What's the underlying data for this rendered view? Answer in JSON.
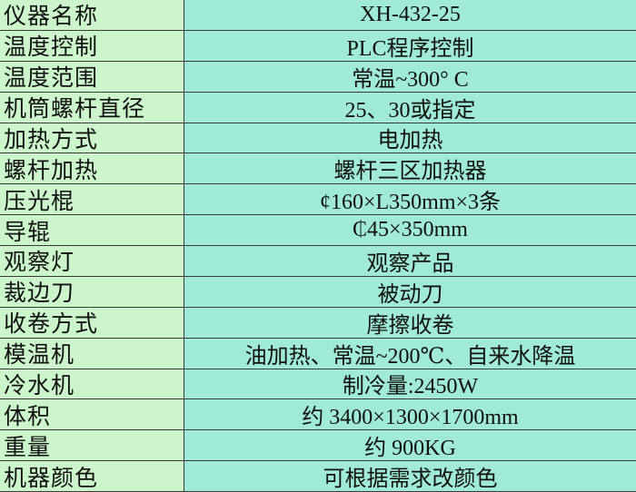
{
  "table": {
    "rows": [
      [
        "仪器名称",
        "XH-432-25"
      ],
      [
        "温度控制",
        "PLC程序控制"
      ],
      [
        "温度范围",
        "常温~300° C"
      ],
      [
        "机筒螺杆直径",
        "25、30或指定"
      ],
      [
        "加热方式",
        "电加热"
      ],
      [
        "螺杆加热",
        "螺杆三区加热器"
      ],
      [
        "压光棍",
        "¢160×L350mm×3条"
      ],
      [
        "导辊",
        "₵45×350mm"
      ],
      [
        "观察灯",
        "观察产品"
      ],
      [
        "裁边刀",
        "被动刀"
      ],
      [
        "收卷方式",
        "摩擦收卷"
      ],
      [
        "模温机",
        "油加热、常温~200℃、自来水降温"
      ],
      [
        "冷水机",
        "制冷量:2450W"
      ],
      [
        "体积",
        "约 3400×1300×1700mm"
      ],
      [
        "重量",
        "约 900KG"
      ],
      [
        "机器颜色",
        "可根据需求改颜色"
      ]
    ]
  }
}
